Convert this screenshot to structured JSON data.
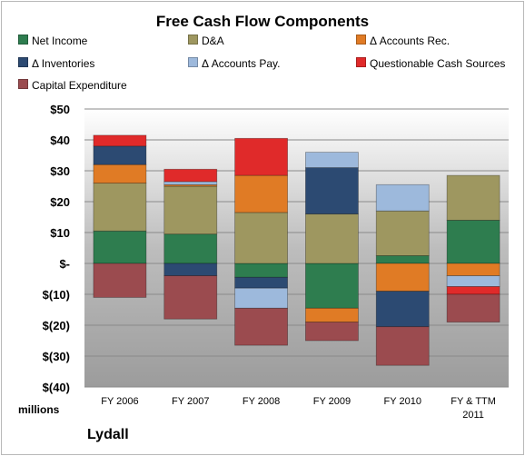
{
  "chart_data": {
    "type": "bar",
    "stacked": true,
    "title": "Free Cash Flow Components",
    "xlabel": "",
    "ylabel": "",
    "units_label": "millions",
    "brand": "Lydall",
    "categories": [
      "FY 2006",
      "FY 2007",
      "FY 2008",
      "FY 2009",
      "FY 2010",
      "FY & TTM 2011"
    ],
    "ylim": [
      -40,
      50
    ],
    "ytick_values": [
      50,
      40,
      30,
      20,
      10,
      0,
      -10,
      -20,
      -30,
      -40
    ],
    "ytick_labels": [
      "$50",
      "$40",
      "$30",
      "$20",
      "$10",
      "$-",
      "$(10)",
      "$(20)",
      "$(30)",
      "$(40)"
    ],
    "legend_position": "top",
    "grid": true,
    "series": [
      {
        "name": "Net Income",
        "color": "#2e7d4f",
        "values": [
          10.5,
          9.5,
          -4.5,
          -14.5,
          2.5,
          14.0
        ]
      },
      {
        "name": "D&A",
        "color": "#9e9760",
        "values": [
          15.5,
          15.5,
          16.5,
          16.0,
          14.5,
          14.5
        ]
      },
      {
        "name": "Δ Accounts Rec.",
        "color": "#e07b25",
        "values": [
          6.0,
          0.5,
          12.0,
          -4.5,
          -9.0,
          -4.0
        ]
      },
      {
        "name": "Δ Inventories",
        "color": "#2c4a72",
        "values": [
          6.0,
          -4.0,
          -3.5,
          15.0,
          -11.5,
          0.0
        ]
      },
      {
        "name": "Δ Accounts Pay.",
        "color": "#9db9dc",
        "values": [
          0.0,
          1.0,
          -6.5,
          5.0,
          8.5,
          -3.5
        ]
      },
      {
        "name": "Questionable Cash Sources",
        "color": "#e02a2a",
        "values": [
          3.5,
          4.0,
          12.0,
          0.0,
          0.0,
          -2.5
        ]
      },
      {
        "name": "Capital Expenditure",
        "color": "#9b4b4f",
        "values": [
          -11.0,
          -14.0,
          -12.0,
          -6.0,
          -12.5,
          -9.0
        ]
      }
    ]
  }
}
